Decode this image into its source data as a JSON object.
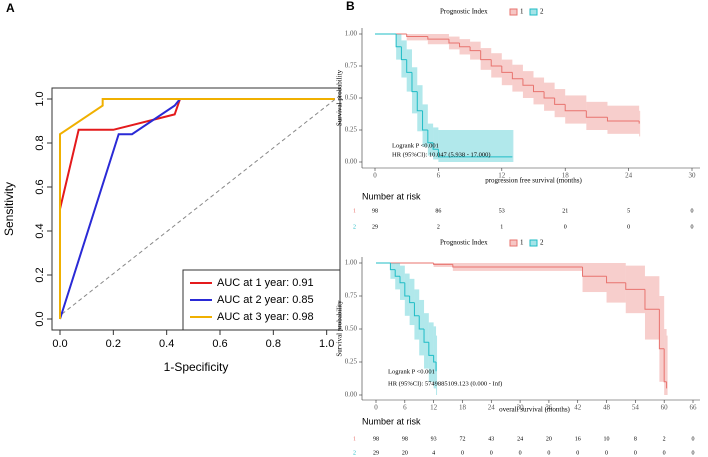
{
  "chart_data": [
    {
      "type": "line",
      "label": "A",
      "xlabel": "1-Specificity",
      "ylabel": "Sensitivity",
      "xlim": [
        -0.03,
        1.05
      ],
      "ylim": [
        -0.05,
        1.05
      ],
      "xticks": [
        {
          "value": 0,
          "label": "0.0"
        },
        {
          "value": 0.2,
          "label": "0.2"
        },
        {
          "value": 0.4,
          "label": "0.4"
        },
        {
          "value": 0.6,
          "label": "0.6"
        },
        {
          "value": 0.8,
          "label": "0.8"
        },
        {
          "value": 1,
          "label": "1.0"
        }
      ],
      "yticks": [
        {
          "value": 0,
          "label": "0.0"
        },
        {
          "value": 0.2,
          "label": "0.2"
        },
        {
          "value": 0.4,
          "label": "0.4"
        },
        {
          "value": 0.6,
          "label": "0.6"
        },
        {
          "value": 0.8,
          "label": "0.8"
        },
        {
          "value": 1,
          "label": "1.0"
        }
      ],
      "legend": "lower right",
      "series": [
        {
          "name": "AUC at 1 year: 0.91",
          "color": "#e41a1c",
          "x": [
            0,
            0,
            0.07,
            0.2,
            0.43,
            0.45,
            1.03
          ],
          "values": [
            0,
            0.5,
            0.86,
            0.86,
            0.93,
            1,
            1
          ]
        },
        {
          "name": "AUC at 2 year: 0.85",
          "color": "#2a2ad6",
          "x": [
            0,
            0.22,
            0.27,
            0.43,
            0.45,
            1.03
          ],
          "values": [
            0,
            0.84,
            0.84,
            0.97,
            1,
            1
          ]
        },
        {
          "name": "AUC at 3 year: 0.98",
          "color": "#f0b000",
          "x": [
            0,
            0,
            0.16,
            0.16,
            1.03
          ],
          "values": [
            0,
            0.84,
            0.97,
            1,
            1
          ]
        }
      ]
    },
    {
      "type": "survival",
      "label": "B",
      "title": "Prognostic Index",
      "xlabel": "progression free survival (months)",
      "ylabel": "Survival probability",
      "xlim": [
        0,
        30
      ],
      "ylim": [
        0,
        1
      ],
      "xticks": [
        0,
        6,
        12,
        18,
        24,
        30
      ],
      "yticks": [
        {
          "value": 0,
          "label": "0.00"
        },
        {
          "value": 0.25,
          "label": "0.25"
        },
        {
          "value": 0.5,
          "label": "0.50"
        },
        {
          "value": 0.75,
          "label": "0.75"
        },
        {
          "value": 1,
          "label": "1.00"
        }
      ],
      "annotations": [
        "Logrank P <0.001",
        "HR (95%CI): 10.047 (5.938 - 17.000)"
      ],
      "series": [
        {
          "name": "1",
          "color": "#e8736e",
          "x": [
            0,
            3,
            5,
            7,
            8,
            9,
            10,
            11,
            12,
            13,
            14,
            15,
            16,
            17,
            18,
            20,
            22,
            25
          ],
          "values": [
            1,
            0.98,
            0.96,
            0.93,
            0.9,
            0.87,
            0.8,
            0.75,
            0.7,
            0.65,
            0.6,
            0.55,
            0.5,
            0.45,
            0.4,
            0.35,
            0.32,
            0.3
          ],
          "lower": [
            1,
            0.95,
            0.92,
            0.88,
            0.84,
            0.8,
            0.72,
            0.66,
            0.6,
            0.55,
            0.5,
            0.45,
            0.4,
            0.35,
            0.3,
            0.25,
            0.22,
            0.2
          ],
          "upper": [
            1,
            1,
            1,
            0.98,
            0.96,
            0.94,
            0.89,
            0.85,
            0.8,
            0.76,
            0.71,
            0.66,
            0.62,
            0.57,
            0.52,
            0.47,
            0.44,
            0.4
          ]
        },
        {
          "name": "2",
          "color": "#1fbcc6",
          "x": [
            0,
            1.5,
            2,
            2.5,
            3,
            3.5,
            4,
            4.5,
            5,
            5.5,
            6,
            13
          ],
          "values": [
            1,
            1,
            0.9,
            0.8,
            0.7,
            0.55,
            0.4,
            0.25,
            0.15,
            0.1,
            0.04,
            0.04
          ],
          "lower": [
            1,
            1,
            0.8,
            0.66,
            0.55,
            0.38,
            0.24,
            0.12,
            0.05,
            0.02,
            0,
            0
          ],
          "upper": [
            1,
            1,
            1,
            0.95,
            0.88,
            0.74,
            0.6,
            0.45,
            0.3,
            0.27,
            0.25,
            0.25
          ]
        }
      ],
      "risk_table": {
        "title": "Number at risk",
        "rows": [
          [
            98,
            86,
            53,
            21,
            5,
            0
          ],
          [
            29,
            2,
            1,
            0,
            0,
            0
          ]
        ]
      }
    },
    {
      "type": "survival",
      "title": "Prognostic Index",
      "xlabel": "overall survival (months)",
      "ylabel": "Survival probability",
      "xlim": [
        0,
        66
      ],
      "ylim": [
        0,
        1
      ],
      "xticks": [
        0,
        6,
        12,
        18,
        24,
        30,
        36,
        42,
        48,
        54,
        60,
        66
      ],
      "yticks": [
        {
          "value": 0,
          "label": "0.00"
        },
        {
          "value": 0.25,
          "label": "0.25"
        },
        {
          "value": 0.5,
          "label": "0.50"
        },
        {
          "value": 0.75,
          "label": "0.75"
        },
        {
          "value": 1,
          "label": "1.00"
        }
      ],
      "annotations": [
        "Logrank P <0.001",
        "HR (95%CI): 5749885109.123 (0.000 - Inf)"
      ],
      "series": [
        {
          "name": "1",
          "color": "#e8736e",
          "x": [
            0,
            12,
            16,
            43,
            48,
            52,
            56,
            59,
            60,
            60.5
          ],
          "values": [
            1,
            0.99,
            0.97,
            0.9,
            0.85,
            0.8,
            0.65,
            0.35,
            0.1,
            0.05
          ],
          "lower": [
            1,
            0.97,
            0.94,
            0.78,
            0.7,
            0.62,
            0.42,
            0.1,
            0,
            0
          ],
          "upper": [
            1,
            1,
            1,
            1,
            1,
            0.98,
            0.9,
            0.75,
            0.5,
            0.45
          ]
        },
        {
          "name": "2",
          "color": "#1fbcc6",
          "x": [
            0,
            3,
            4,
            5,
            6,
            7,
            8,
            9,
            10,
            11,
            12,
            12.5
          ],
          "values": [
            1,
            0.95,
            0.9,
            0.85,
            0.75,
            0.7,
            0.6,
            0.5,
            0.4,
            0.3,
            0.25,
            0.18
          ],
          "lower": [
            1,
            0.88,
            0.8,
            0.72,
            0.6,
            0.53,
            0.42,
            0.3,
            0.2,
            0.1,
            0.05,
            0
          ],
          "upper": [
            1,
            1,
            1,
            0.98,
            0.92,
            0.88,
            0.8,
            0.72,
            0.62,
            0.55,
            0.52,
            0.45
          ]
        }
      ],
      "risk_table": {
        "title": "Number at risk",
        "rows": [
          [
            98,
            98,
            93,
            72,
            43,
            24,
            20,
            16,
            10,
            8,
            2,
            0
          ],
          [
            29,
            20,
            4,
            0,
            0,
            0,
            0,
            0,
            0,
            0,
            0,
            0
          ]
        ]
      }
    }
  ]
}
